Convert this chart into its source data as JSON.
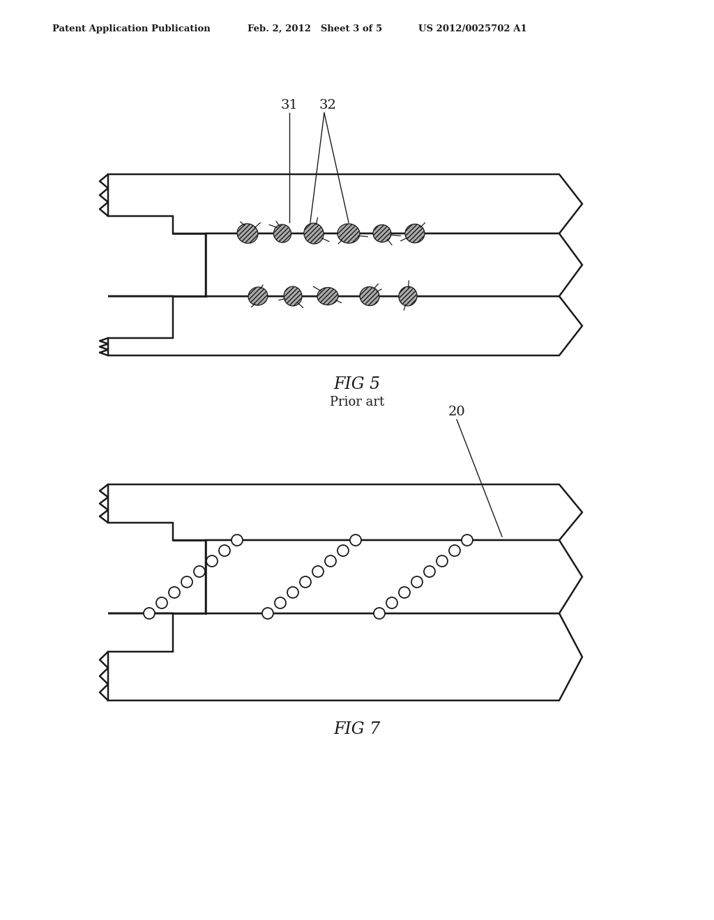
{
  "background_color": "#ffffff",
  "header_left": "Patent Application Publication",
  "header_center": "Feb. 2, 2012   Sheet 3 of 5",
  "header_right": "US 2012/0025702 A1",
  "fig5_label": "FIG 5",
  "fig5_sublabel": "Prior art",
  "fig7_label": "FIG 7",
  "label_31": "31",
  "label_32": "32",
  "label_20": "20",
  "line_color": "#1a1a1a"
}
